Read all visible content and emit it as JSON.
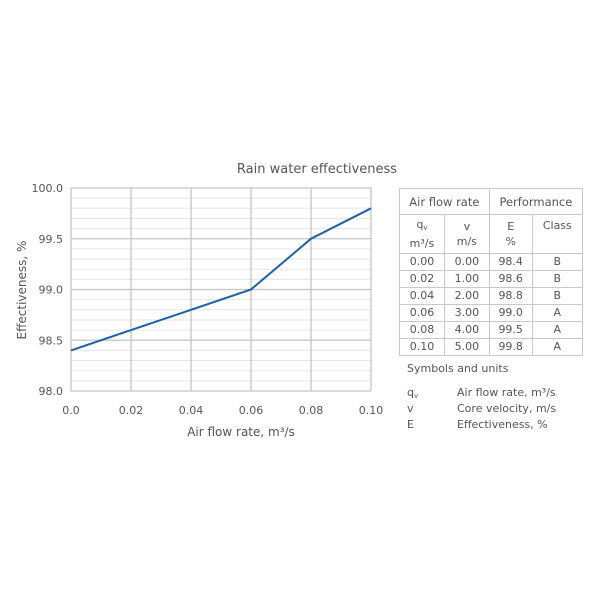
{
  "chart_data": {
    "type": "line",
    "title": "Rain water effectiveness",
    "xlabel": "Air flow rate, m³/s",
    "ylabel": "Effectiveness, %",
    "x": [
      0.0,
      0.02,
      0.04,
      0.06,
      0.08,
      0.1
    ],
    "series": [
      {
        "values": [
          98.4,
          98.6,
          98.8,
          99.0,
          99.5,
          99.8
        ]
      }
    ],
    "xlim": [
      0.0,
      0.1
    ],
    "ylim": [
      98.0,
      100.0
    ],
    "xticks": [
      "0.0",
      "0.02",
      "0.04",
      "0.06",
      "0.08",
      "0.10"
    ],
    "yticks": [
      "98.0",
      "98.5",
      "99.0",
      "99.5",
      "100.0"
    ],
    "grid": true,
    "line_color": "#1f5fa6"
  },
  "table": {
    "group_headers": [
      "Air flow rate",
      "Performance"
    ],
    "col_headers": [
      {
        "sym": "q",
        "sub": "v",
        "unit": "m³/s"
      },
      {
        "sym": "v",
        "sub": "",
        "unit": "m/s"
      },
      {
        "sym": "E",
        "sub": "",
        "unit": "%"
      },
      {
        "sym": "Class",
        "sub": "",
        "unit": ""
      }
    ],
    "rows": [
      [
        "0.00",
        "0.00",
        "98.4",
        "B"
      ],
      [
        "0.02",
        "1.00",
        "98.6",
        "B"
      ],
      [
        "0.04",
        "2.00",
        "98.8",
        "B"
      ],
      [
        "0.06",
        "3.00",
        "99.0",
        "A"
      ],
      [
        "0.08",
        "4.00",
        "99.5",
        "A"
      ],
      [
        "0.10",
        "5.00",
        "99.8",
        "A"
      ]
    ]
  },
  "legend": {
    "title": "Symbols and units",
    "items": [
      {
        "sym": "q",
        "sub": "v",
        "desc": "Air flow rate, m³/s"
      },
      {
        "sym": "v",
        "sub": "",
        "desc": "Core velocity, m/s"
      },
      {
        "sym": "E",
        "sub": "",
        "desc": "Effectiveness, %"
      }
    ]
  }
}
